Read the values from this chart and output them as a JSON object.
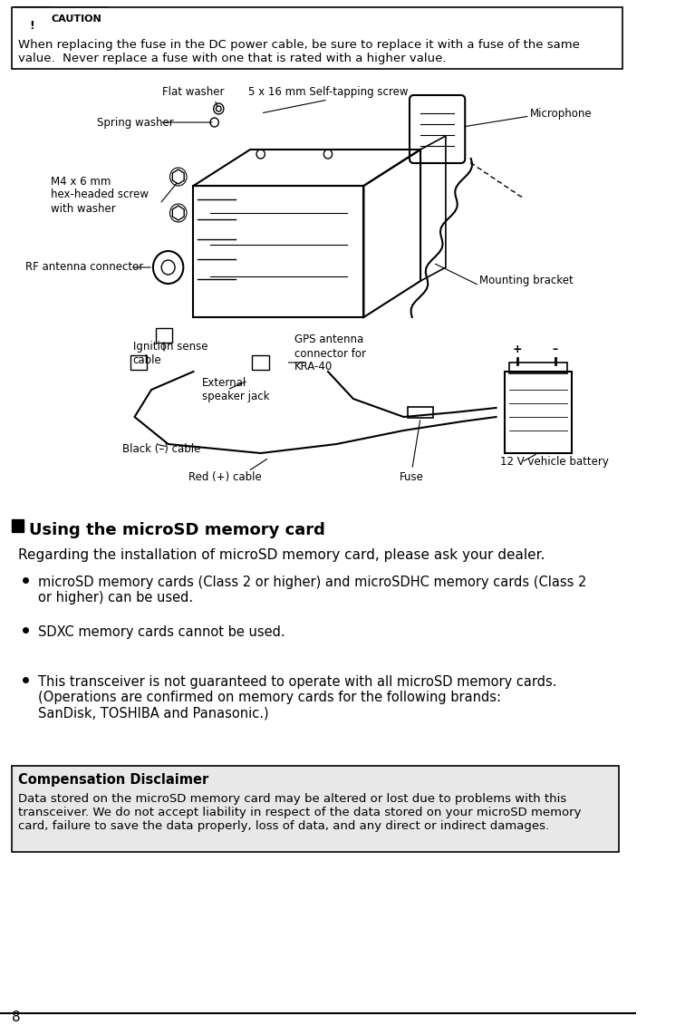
{
  "page_number": "8",
  "background_color": "#ffffff",
  "caution_box": {
    "text_line1": "When replacing the fuse in the DC power cable, be sure to replace it with a fuse of the same",
    "text_line2": "value.  Never replace a fuse with one that is rated with a higher value.",
    "label": "CAUTION"
  },
  "diagram_labels": [
    "Flat washer",
    "5 x 16 mm Self-tapping screw",
    "Spring washer",
    "Microphone",
    "M4 x 6 mm\nhex-headed screw\nwith washer",
    "RF antenna connector",
    "Mounting bracket",
    "GPS antenna\nconnector for\nKRA-40",
    "Ignition sense\ncable",
    "External\nspeaker jack",
    "12 V vehicle battery",
    "Black (–) cable",
    "Red (+) cable",
    "Fuse"
  ],
  "section_title": "Using the microSD memory card",
  "section_intro": "Regarding the installation of microSD memory card, please ask your dealer.",
  "bullet_points": [
    "microSD memory cards (Class 2 or higher) and microSDHC memory cards (Class 2\nor higher) can be used.",
    "SDXC memory cards cannot be used.",
    "This transceiver is not guaranteed to operate with all microSD memory cards.\n(Operations are confirmed on memory cards for the following brands:\nSanDisk, TOSHIBA and Panasonic.)"
  ],
  "disclaimer_title": "Compensation Disclaimer",
  "disclaimer_text": "Data stored on the microSD memory card may be altered or lost due to problems with this\ntransceiver. We do not accept liability in respect of the data stored on your microSD memory\ncard, failure to save the data properly, loss of data, and any direct or indirect damages.",
  "text_color": "#000000",
  "box_border_color": "#000000",
  "disclaimer_bg": "#e8e8e8"
}
